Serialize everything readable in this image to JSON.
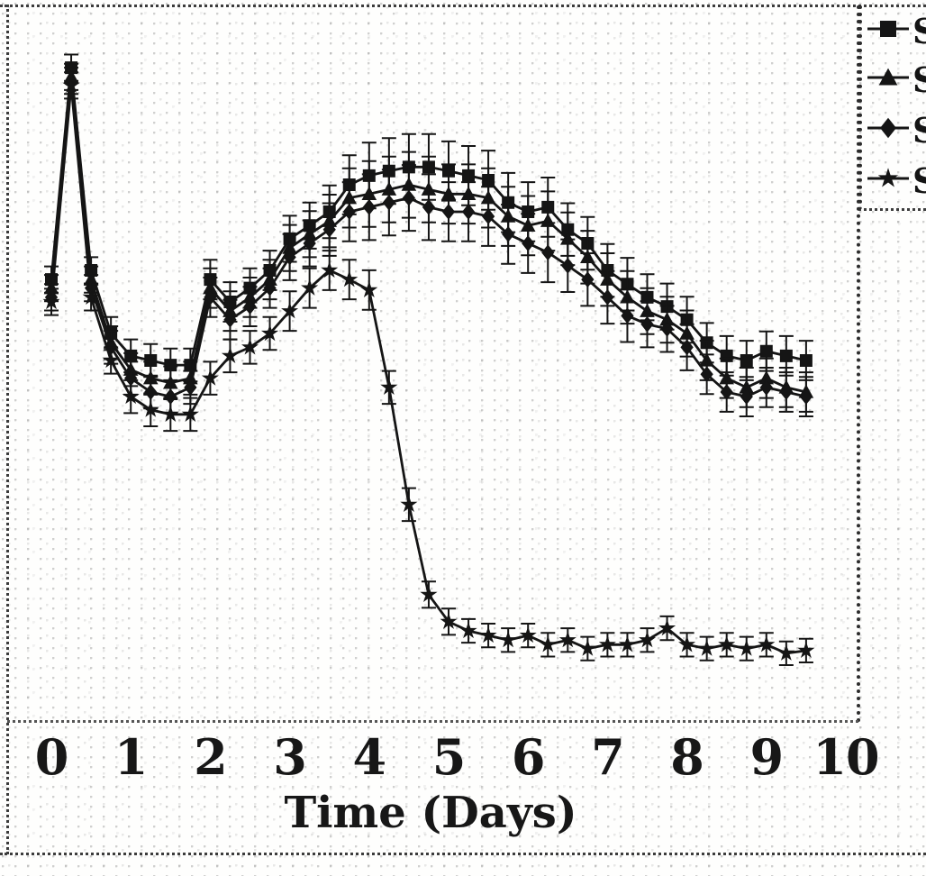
{
  "figure": {
    "description": "Scanned monochrome line chart with error bars",
    "xlabel": "Time (Days)",
    "x_ticks": [
      "0",
      "1",
      "2",
      "3",
      "4",
      "5",
      "6",
      "7",
      "8",
      "9",
      "10"
    ],
    "ink_color": "#151515"
  },
  "legend": {
    "note": "legend text cut off at right edge of image",
    "items": [
      {
        "marker": "filled-square",
        "label_visible": "S"
      },
      {
        "marker": "filled-triangle",
        "label_visible": "S"
      },
      {
        "marker": "filled-diamond",
        "label_visible": "S"
      },
      {
        "marker": "star",
        "label_visible": "S"
      }
    ]
  },
  "chart_data": {
    "type": "line",
    "title": "",
    "xlabel": "Time (Days)",
    "ylabel": "",
    "y_units": "arbitrary (no y-axis labels visible in image)",
    "xlim": [
      0,
      10.5
    ],
    "ylim": [
      0,
      105
    ],
    "grid": false,
    "error_bars": true,
    "legend_position": "top-right (clipped)",
    "x": [
      0,
      0.25,
      0.5,
      0.75,
      1,
      1.25,
      1.5,
      1.75,
      2,
      2.25,
      2.5,
      2.75,
      3,
      3.25,
      3.5,
      3.75,
      4,
      4.25,
      4.5,
      4.75,
      5,
      5.25,
      5.5,
      5.75,
      6,
      6.25,
      6.5,
      6.75,
      7,
      7.25,
      7.5,
      7.75,
      8,
      8.25,
      8.5,
      8.75,
      9,
      9.25,
      9.5
    ],
    "series": [
      {
        "name": "series-1-square",
        "marker": "square",
        "color": "#151515",
        "values": [
          67.1,
          99.3,
          68.5,
          58.9,
          55.5,
          54.8,
          54.1,
          54.1,
          67.1,
          63.7,
          65.8,
          68.5,
          73.3,
          75.3,
          77.4,
          81.5,
          82.9,
          83.6,
          84.2,
          84.2,
          83.6,
          82.9,
          82.2,
          78.8,
          77.4,
          78.1,
          74.7,
          72.6,
          68.5,
          66.4,
          64.4,
          63,
          61,
          57.5,
          55.5,
          54.8,
          56.2,
          55.5,
          54.8
        ],
        "errors": [
          2,
          2,
          2,
          2.5,
          2.5,
          2.5,
          2.5,
          2.5,
          3,
          3,
          3,
          3,
          3.5,
          3.5,
          4,
          4.5,
          5,
          5,
          5,
          5,
          4.5,
          4.5,
          4.5,
          4.5,
          4.5,
          4.5,
          4,
          4,
          4,
          4,
          3.5,
          3.5,
          3.5,
          3,
          3,
          3,
          3,
          3,
          3
        ]
      },
      {
        "name": "series-2-triangle",
        "marker": "triangle",
        "color": "#151515",
        "values": [
          65.8,
          97.9,
          67.1,
          57.5,
          53.4,
          52.1,
          51.4,
          52.1,
          65.8,
          62.3,
          64.4,
          67.1,
          71.9,
          74,
          76,
          79.5,
          80.1,
          80.8,
          81.5,
          80.8,
          80.1,
          80.1,
          79.5,
          76.7,
          75.3,
          76,
          73.3,
          70.5,
          67.1,
          64.4,
          62.3,
          61,
          58.9,
          54.8,
          52.1,
          50.7,
          52.1,
          50.7,
          50
        ],
        "errors": [
          2,
          2,
          2,
          2.5,
          2.5,
          2.5,
          2.5,
          2.5,
          3,
          3,
          3,
          3,
          3.5,
          3.5,
          4,
          4.5,
          5,
          5,
          5,
          5,
          4.5,
          4.5,
          4.5,
          4.5,
          4.5,
          4.5,
          4,
          4,
          4,
          4,
          3.5,
          3.5,
          3.5,
          3,
          3,
          3,
          3,
          3,
          3
        ]
      },
      {
        "name": "series-3-diamond",
        "marker": "diamond",
        "color": "#151515",
        "values": [
          64.4,
          97.3,
          65.8,
          56.8,
          52.1,
          50,
          49.3,
          50.7,
          64.4,
          61,
          63,
          65.8,
          70.5,
          72.6,
          74.7,
          77.4,
          78.1,
          78.8,
          79.5,
          78.1,
          77.4,
          77.4,
          76.7,
          74,
          72.6,
          71.2,
          69.2,
          67.1,
          64.4,
          61.6,
          60.3,
          59.6,
          56.8,
          52.7,
          50,
          49.3,
          50.7,
          50,
          49.3
        ],
        "errors": [
          2,
          2,
          2,
          2.5,
          2.5,
          2.5,
          2.5,
          2.5,
          3,
          3,
          3,
          3,
          3.5,
          3.5,
          4,
          4.5,
          5,
          5,
          5,
          5,
          4.5,
          4.5,
          4.5,
          4.5,
          4.5,
          4.5,
          4,
          4,
          4,
          4,
          3.5,
          3.5,
          3.5,
          3,
          3,
          3,
          3,
          3,
          3
        ]
      },
      {
        "name": "series-4-star",
        "marker": "star",
        "color": "#151515",
        "values": [
          63.7,
          96.6,
          64.4,
          54.8,
          49.3,
          47.3,
          46.6,
          46.6,
          52.1,
          55.5,
          56.8,
          58.9,
          62.3,
          65.8,
          68.5,
          67.1,
          65.5,
          50.7,
          32.9,
          19.2,
          15.1,
          13.7,
          13,
          12.3,
          13,
          11.6,
          12.3,
          11,
          11.6,
          11.6,
          12.3,
          14.1,
          11.6,
          11,
          11.6,
          11,
          11.6,
          10.3,
          10.7
        ],
        "errors": [
          2,
          2,
          2,
          2,
          2.5,
          2.5,
          2.5,
          2.5,
          2.5,
          2.5,
          2.5,
          2.5,
          3,
          3,
          3,
          3,
          3,
          2.5,
          2.5,
          2,
          2,
          1.8,
          1.8,
          1.8,
          1.8,
          1.8,
          1.8,
          1.8,
          1.8,
          1.8,
          1.8,
          1.8,
          1.8,
          1.8,
          1.8,
          1.8,
          1.8,
          1.8,
          1.8
        ]
      }
    ]
  }
}
